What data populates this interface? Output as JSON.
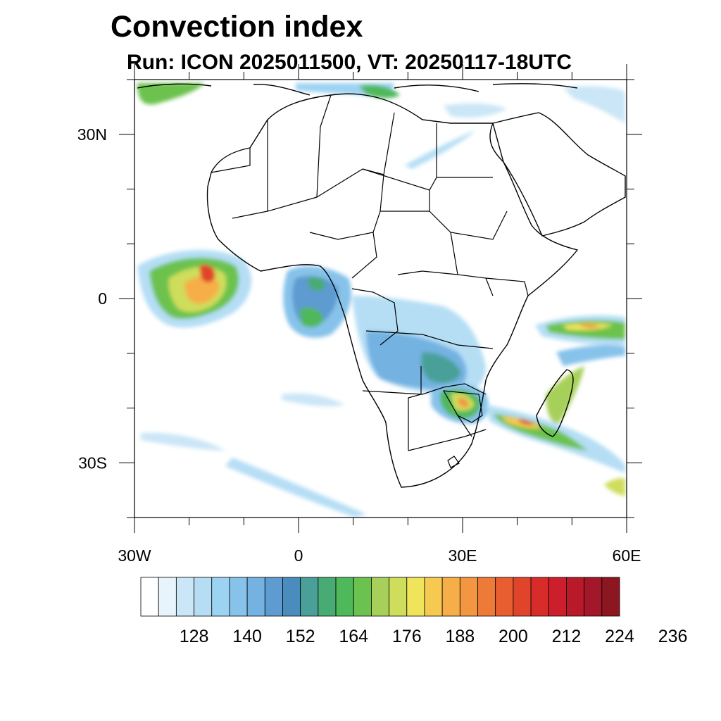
{
  "figure": {
    "title": "Convection index",
    "subtitle": "Run: ICON 2025011500,  VT: 20250117-18UTC"
  },
  "axes": {
    "lon_ticks": [
      {
        "lon": -30,
        "label": "30W"
      },
      {
        "lon": 0,
        "label": "0"
      },
      {
        "lon": 30,
        "label": "30E"
      },
      {
        "lon": 60,
        "label": "60E"
      }
    ],
    "lat_ticks": [
      {
        "lat": 30,
        "label": "30N"
      },
      {
        "lat": 0,
        "label": "0"
      },
      {
        "lat": -30,
        "label": "30S"
      }
    ],
    "lon_range": [
      -30,
      60
    ],
    "lat_range": [
      -40,
      40
    ]
  },
  "colorbar": {
    "start": 116,
    "step": 4,
    "tick_labels": [
      "128",
      "140",
      "152",
      "164",
      "176",
      "188",
      "200",
      "212",
      "224",
      "236"
    ],
    "colors": [
      "#ffffff",
      "#e8f4fc",
      "#cbe6f7",
      "#b5def5",
      "#9dd3f2",
      "#86c2ea",
      "#73b2e1",
      "#5d9bd0",
      "#4b8cbf",
      "#4aa098",
      "#48ab73",
      "#4fb85a",
      "#6cc24e",
      "#a7d05a",
      "#cfdd5c",
      "#efe45a",
      "#f6c951",
      "#f6ae48",
      "#f39641",
      "#ee7a37",
      "#e85e30",
      "#e0452b",
      "#d82c2a",
      "#cc1f2b",
      "#b81a2a",
      "#a2182a",
      "#8c1720"
    ]
  },
  "map": {
    "field": "Convection index",
    "regions": [
      {
        "area": "Equatorial Atlantic off West Africa",
        "lon": -23,
        "lat": 2,
        "level": "high"
      },
      {
        "area": "Gulf of Guinea / Central Africa",
        "lon": 8,
        "lat": 0,
        "level": "moderate"
      },
      {
        "area": "Zambia / Malawi",
        "lon": 28,
        "lat": -12,
        "level": "moderate"
      },
      {
        "area": "Zimbabwe / Mozambique",
        "lon": 31,
        "lat": -19,
        "level": "high"
      },
      {
        "area": "Mozambique Channel / Madagascar",
        "lon": 42,
        "lat": -24,
        "level": "high"
      },
      {
        "area": "Indian Ocean near 5S",
        "lon": 54,
        "lat": -5,
        "level": "high"
      },
      {
        "area": "Mediterranean",
        "lon": 10,
        "lat": 37,
        "level": "moderate"
      }
    ]
  }
}
